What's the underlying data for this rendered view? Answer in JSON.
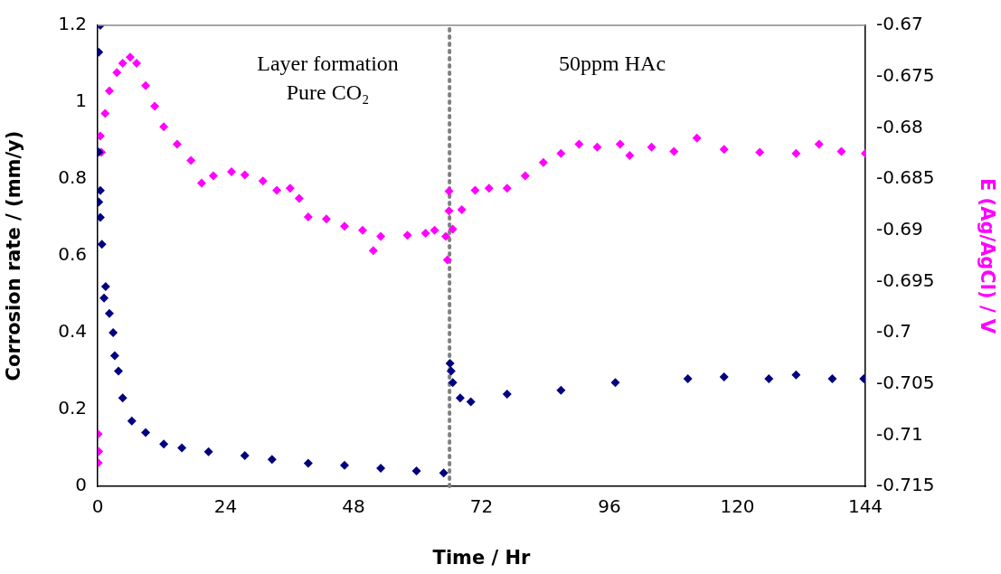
{
  "chart_data": {
    "type": "scatter",
    "xlabel": "Time / Hr",
    "ylabel": "Corrosion rate / (mm/y)",
    "y2label": "E (Ag/AgCl) / V",
    "xlim": [
      0,
      144
    ],
    "xticks": [
      0,
      24,
      48,
      72,
      96,
      120,
      144
    ],
    "ylim": [
      0,
      1.2
    ],
    "yticks": [
      0,
      0.2,
      0.4,
      0.6,
      0.8,
      1,
      1.2
    ],
    "y2lim": [
      -0.715,
      -0.67
    ],
    "y2ticks": [
      -0.715,
      -0.71,
      -0.705,
      -0.7,
      -0.695,
      -0.69,
      -0.685,
      -0.68,
      -0.675,
      -0.67
    ],
    "grid": false,
    "legend": false,
    "marker": "diamond",
    "annotations": [
      "Layer formation",
      "Pure CO₂",
      "50ppm HAc"
    ],
    "ref_lines": [
      {
        "axis": "x",
        "value": 66,
        "color": "#808080",
        "line_style": "dotted"
      }
    ],
    "series": [
      {
        "color": "#000080",
        "x": [
          0.2,
          0.5,
          0.2,
          0.5,
          0.2,
          0.5,
          0.8,
          1.5,
          1.2,
          2.2,
          2.9,
          3.2,
          3.9,
          4.7,
          6.4,
          9.0,
          12.4,
          15.8,
          20.8,
          27.6,
          32.7,
          39.5,
          46.3,
          53.1,
          59.8,
          64.9,
          66.1,
          66.3,
          66.6,
          68,
          70,
          76.8,
          86.9,
          97.1,
          110.7,
          117.5,
          125.9,
          131,
          137.8,
          143.7
        ],
        "values": [
          1.13,
          1.2,
          0.87,
          0.77,
          0.74,
          0.7,
          0.63,
          0.52,
          0.49,
          0.45,
          0.4,
          0.34,
          0.3,
          0.23,
          0.17,
          0.14,
          0.11,
          0.1,
          0.09,
          0.08,
          0.07,
          0.06,
          0.055,
          0.047,
          0.04,
          0.035,
          0.32,
          0.3,
          0.27,
          0.23,
          0.22,
          0.24,
          0.25,
          0.27,
          0.28,
          0.285,
          0.28,
          0.29,
          0.28,
          0.28
        ]
      },
      {
        "color": "#ff00ff",
        "axis": "y2",
        "x": [
          0.1,
          0.2,
          0.1,
          0.7,
          0.5,
          1.4,
          2.2,
          3.6,
          4.7,
          6.1,
          7.3,
          9.0,
          10.7,
          12.4,
          14.9,
          17.5,
          19.5,
          21.7,
          25.1,
          27.6,
          31.0,
          33.6,
          36.1,
          37.8,
          39.5,
          42.9,
          46.3,
          49.7,
          51.7,
          53.1,
          58.1,
          61.5,
          63.2,
          65.3,
          65.6,
          65.9,
          65.9,
          66.6,
          68.3,
          70.8,
          73.4,
          76.8,
          80.2,
          83.6,
          86.9,
          90.3,
          93.7,
          98.0,
          99.8,
          103.9,
          108.1,
          112.4,
          117.5,
          124.2,
          131,
          135.3,
          139.5,
          144
        ],
        "values": [
          -0.7099,
          -0.7116,
          -0.7127,
          -0.6824,
          -0.6808,
          -0.6786,
          -0.6764,
          -0.6746,
          -0.6737,
          -0.6731,
          -0.6737,
          -0.6759,
          -0.6779,
          -0.6799,
          -0.6816,
          -0.6832,
          -0.6854,
          -0.6847,
          -0.6843,
          -0.6846,
          -0.6852,
          -0.6861,
          -0.6859,
          -0.6869,
          -0.6887,
          -0.6889,
          -0.6896,
          -0.69,
          -0.692,
          -0.6906,
          -0.6905,
          -0.6903,
          -0.69,
          -0.6906,
          -0.6929,
          -0.6862,
          -0.6881,
          -0.6899,
          -0.688,
          -0.6861,
          -0.6859,
          -0.6859,
          -0.6847,
          -0.6834,
          -0.6825,
          -0.6816,
          -0.6819,
          -0.6816,
          -0.6827,
          -0.6819,
          -0.6823,
          -0.681,
          -0.6821,
          -0.6824,
          -0.6825,
          -0.6816,
          -0.6823,
          -0.6825
        ]
      }
    ]
  }
}
